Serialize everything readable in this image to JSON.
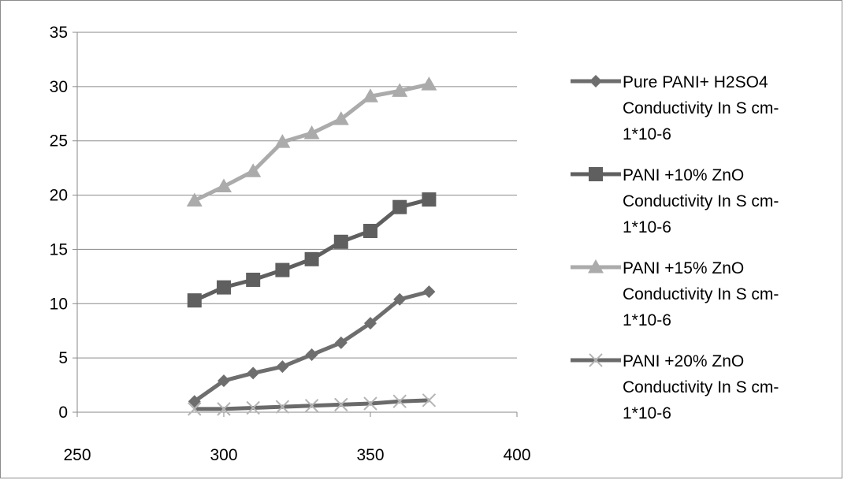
{
  "chart_data": {
    "type": "line",
    "title": "",
    "xlabel": "",
    "ylabel": "",
    "xlim": [
      250,
      400
    ],
    "ylim": [
      0,
      35
    ],
    "x_ticks": [
      250,
      300,
      350,
      400
    ],
    "y_ticks": [
      0,
      5,
      10,
      15,
      20,
      25,
      30,
      35
    ],
    "x_tick_labels": [
      "250",
      "300",
      "350",
      "400"
    ],
    "y_tick_labels": [
      "0",
      "5",
      "10",
      "15",
      "20",
      "25",
      "30",
      "35"
    ],
    "grid": "horizontal",
    "legend_position": "right",
    "x": [
      290,
      300,
      310,
      320,
      330,
      340,
      350,
      360,
      370
    ],
    "series": [
      {
        "name": "Pure PANI+ H2SO4 Conductivity In  S cm-1*10-6",
        "legend_lines": [
          "Pure PANI+ H2SO4",
          "Conductivity In  S cm-",
          "1*10-6"
        ],
        "marker": "diamond",
        "color": "#6e6e6e",
        "values": [
          1.0,
          2.9,
          3.6,
          4.2,
          5.3,
          6.4,
          8.2,
          10.4,
          11.1
        ]
      },
      {
        "name": "PANI +10% ZnO Conductivity In  S cm-1*10-6",
        "legend_lines": [
          "PANI +10% ZnO",
          "Conductivity In  S cm-",
          "1*10-6"
        ],
        "marker": "square",
        "color": "#5f5f5f",
        "values": [
          10.3,
          11.5,
          12.2,
          13.1,
          14.1,
          15.7,
          16.7,
          18.9,
          19.6
        ]
      },
      {
        "name": "PANI +15% ZnO Conductivity In  S cm-1*10-6",
        "legend_lines": [
          "PANI +15% ZnO",
          "Conductivity In  S cm-",
          "1*10-6"
        ],
        "marker": "triangle",
        "color": "#ababab",
        "values": [
          19.5,
          20.8,
          22.2,
          24.9,
          25.7,
          27.0,
          29.1,
          29.6,
          30.2
        ]
      },
      {
        "name": "PANI +20% ZnO Conductivity In  S cm-1*10-6",
        "legend_lines": [
          "PANI +20% ZnO",
          "Conductivity In  S cm-",
          "1*10-6"
        ],
        "marker": "x",
        "color": "#6a6a6a",
        "marker_color": "#b4b4b4",
        "values": [
          0.3,
          0.3,
          0.4,
          0.5,
          0.6,
          0.7,
          0.8,
          1.0,
          1.1
        ]
      }
    ]
  }
}
